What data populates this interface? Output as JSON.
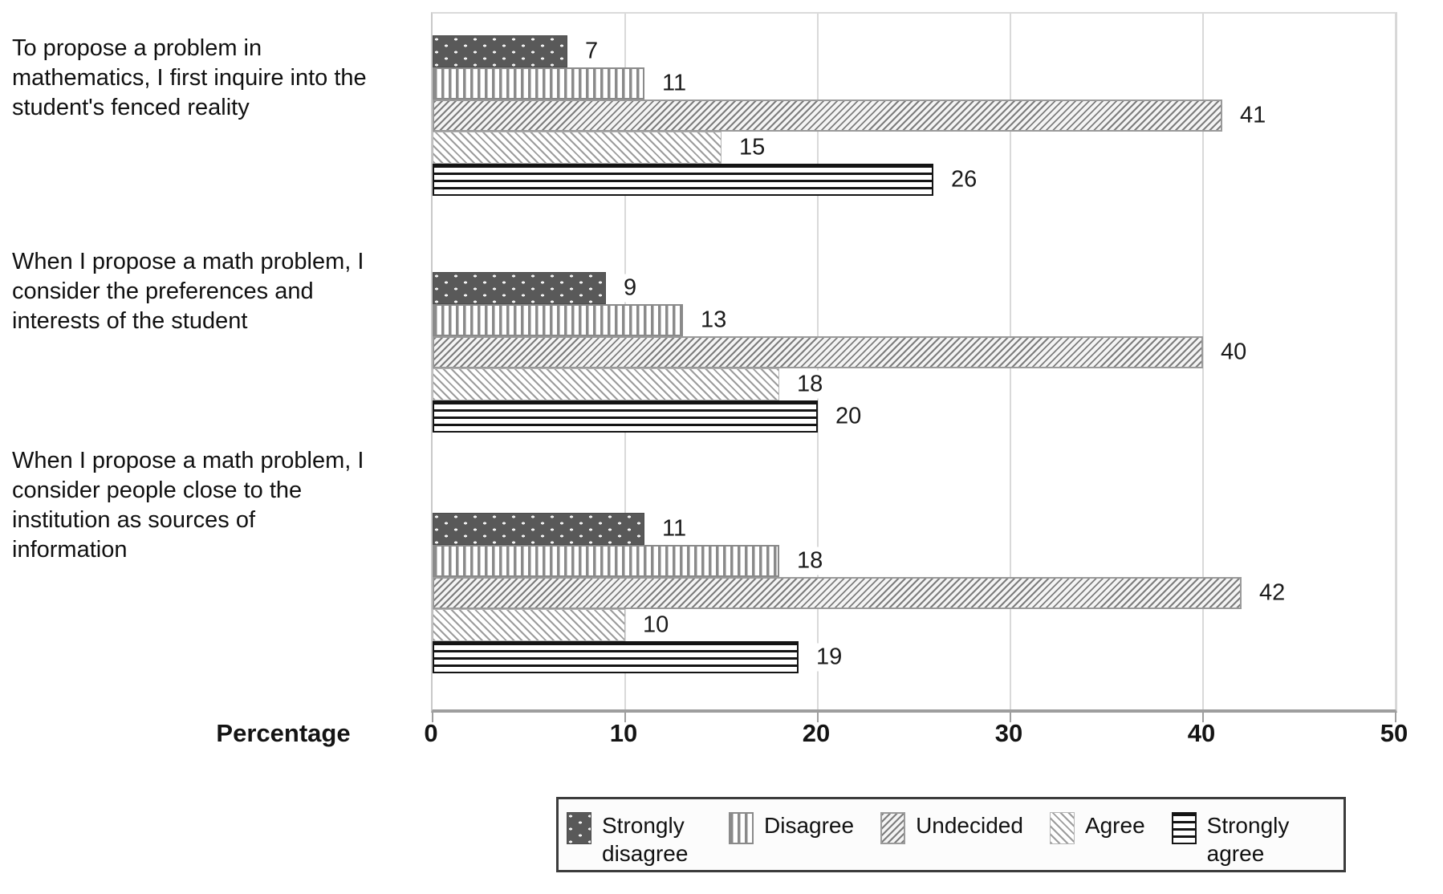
{
  "chart_data": {
    "type": "bar",
    "orientation": "horizontal",
    "title": "",
    "xlabel": "Percentage",
    "ylabel": "",
    "xlim": [
      0,
      50
    ],
    "x_ticks": [
      "0",
      "10",
      "20",
      "30",
      "40",
      "50"
    ],
    "grid": "vertical",
    "legend_position": "bottom",
    "categories": [
      "To propose a problem in mathematics, I first inquire into the student's fenced reality",
      "When I propose a math problem, I consider the preferences and interests of the student",
      "When I propose a math problem, I consider people close to the institution as sources of information"
    ],
    "series": [
      {
        "name": "Strongly disagree",
        "pattern": "white-dots-on-dark-gray",
        "values": [
          7,
          9,
          11
        ]
      },
      {
        "name": "Disagree",
        "pattern": "vertical-stripes",
        "values": [
          11,
          13,
          18
        ]
      },
      {
        "name": "Undecided",
        "pattern": "diagonal-forward-slash",
        "values": [
          41,
          40,
          42
        ]
      },
      {
        "name": "Agree",
        "pattern": "diagonal-back-slash",
        "values": [
          15,
          18,
          10
        ]
      },
      {
        "name": "Strongly agree",
        "pattern": "horizontal-lines",
        "values": [
          26,
          20,
          19
        ]
      }
    ]
  },
  "axis": {
    "title": "Percentage"
  },
  "colors": {
    "background": "#ffffff",
    "dark_bar_fill": "#595959",
    "pattern_line_gray": "#8a8a8a",
    "pattern_line_black": "#141414",
    "gridline": "#d9d9d9",
    "axis_line": "#9e9e9e",
    "text": "#111111",
    "legend_border": "#3c3c3c"
  }
}
